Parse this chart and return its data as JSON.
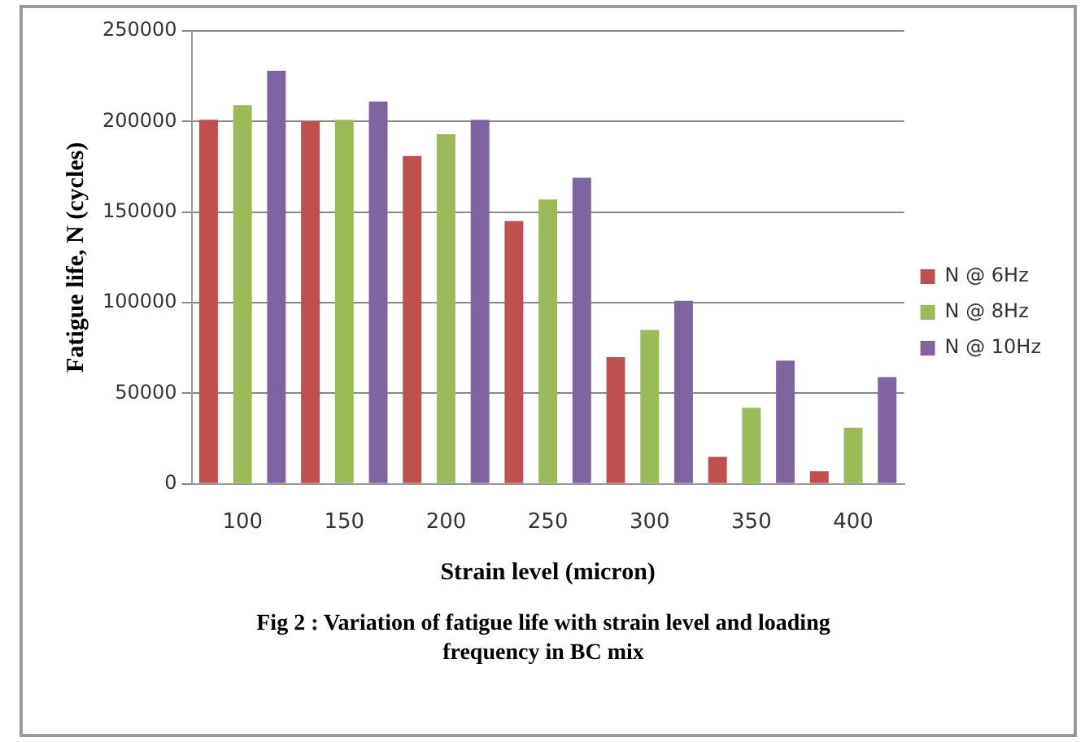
{
  "chart_data": {
    "type": "bar",
    "xlabel": "Strain level (micron)",
    "ylabel": "Fatigue life, N (cycles)",
    "categories": [
      "100",
      "150",
      "200",
      "250",
      "300",
      "350",
      "400"
    ],
    "series": [
      {
        "name": "N @ 6Hz",
        "color": "#c0504d",
        "values": [
          201000,
          200000,
          181000,
          145000,
          70000,
          15000,
          7000
        ]
      },
      {
        "name": "N @ 8Hz",
        "color": "#9bbb59",
        "values": [
          209000,
          201000,
          193000,
          157000,
          85000,
          42000,
          31000
        ]
      },
      {
        "name": "N @ 10Hz",
        "color": "#8064a2",
        "values": [
          228000,
          211000,
          201000,
          169000,
          101000,
          68000,
          59000
        ]
      }
    ],
    "ylim": [
      0,
      250000
    ],
    "yticks": [
      0,
      50000,
      100000,
      150000,
      200000,
      250000
    ],
    "grid": "y",
    "legend": "right",
    "annotations": [
      "Fig 2 : Variation of fatigue life with strain level and loading frequency in BC mix"
    ]
  }
}
